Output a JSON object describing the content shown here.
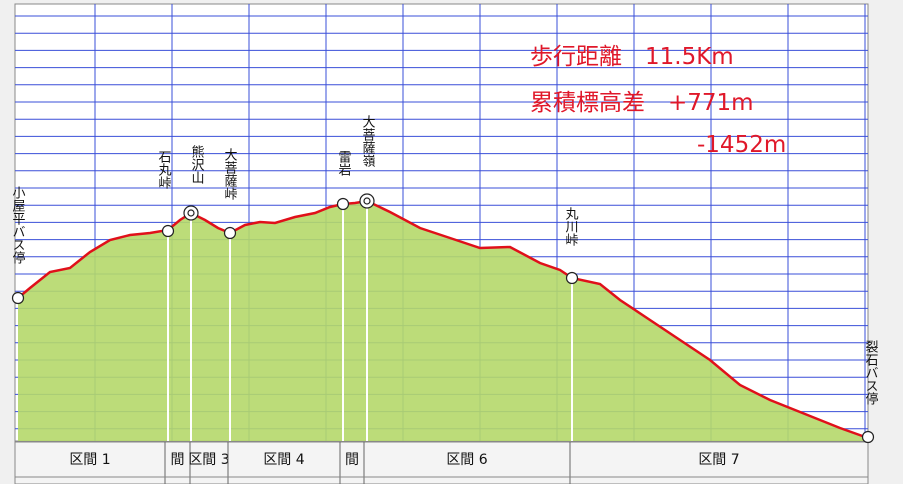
{
  "stats": {
    "distance": "歩行距離　11.5Km",
    "ascent": "累積標高差　+771m",
    "descent": "-1452m"
  },
  "waypoints": [
    "小屋平バス停",
    "石丸峠",
    "熊沢山",
    "大菩薩峠",
    "雷岩",
    "大菩薩嶺",
    "丸川峠",
    "裂石バス停"
  ],
  "sections": [
    "区間 1",
    "間",
    "区間 3",
    "区間 4",
    "間",
    "区間 6",
    "区間 7"
  ]
}
